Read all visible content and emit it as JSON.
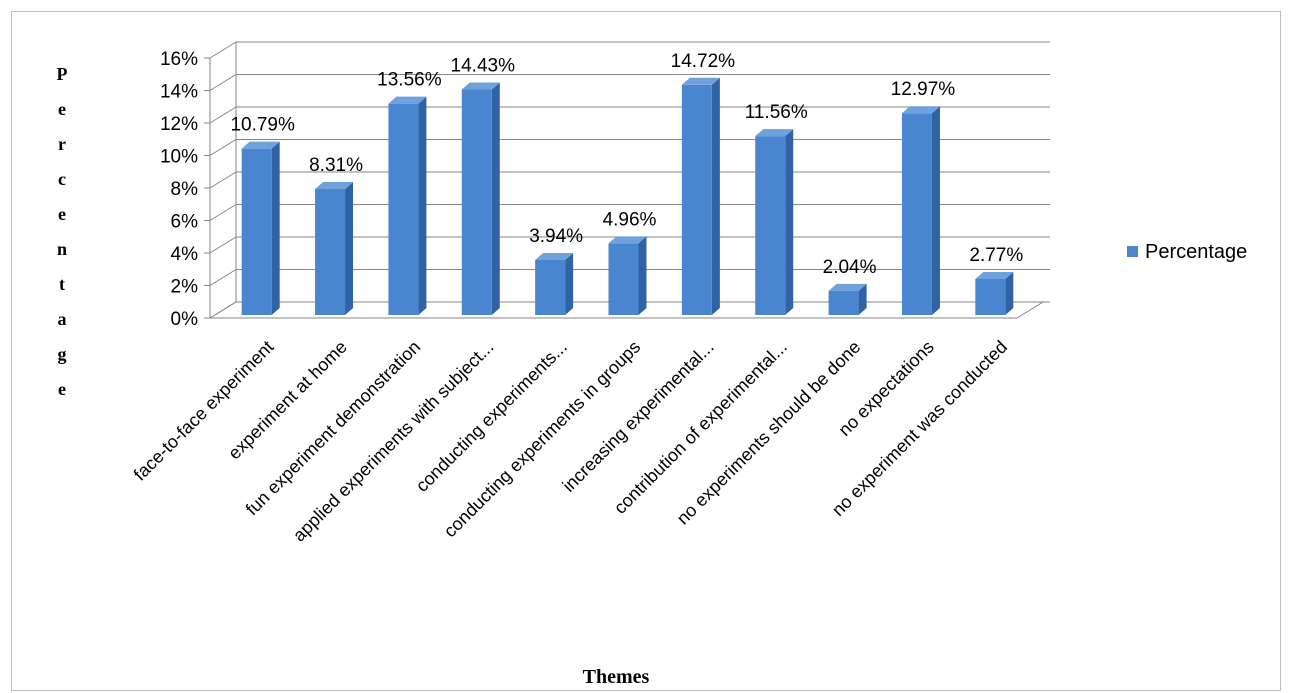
{
  "chart_data": {
    "type": "bar",
    "title": "",
    "xlabel": "Themes",
    "ylabel": "Percentage",
    "ylim": [
      0,
      16
    ],
    "ytick_step": 2,
    "ytick_suffix": "%",
    "grid": true,
    "legend_position": "right",
    "categories": [
      "face-to-face experiment",
      "experiment at home",
      "fun experiment demonstration",
      "applied experiments with subject...",
      "conducting experiments...",
      "conducting experiments in groups",
      "increasing experimental...",
      "contribution of experimental...",
      "no experiments should be done",
      "no expectations",
      "no experiment was conducted"
    ],
    "series": [
      {
        "name": "Percentage",
        "color": "#4a86cf",
        "values": [
          10.79,
          8.31,
          13.56,
          14.43,
          3.94,
          4.96,
          14.72,
          11.56,
          2.04,
          12.97,
          2.77
        ],
        "labels": [
          "10.79%",
          "8.31%",
          "13.56%",
          "14.43%",
          "3.94%",
          "4.96%",
          "14.72%",
          "11.56%",
          "2.04%",
          "12.97%",
          "2.77%"
        ]
      }
    ]
  }
}
